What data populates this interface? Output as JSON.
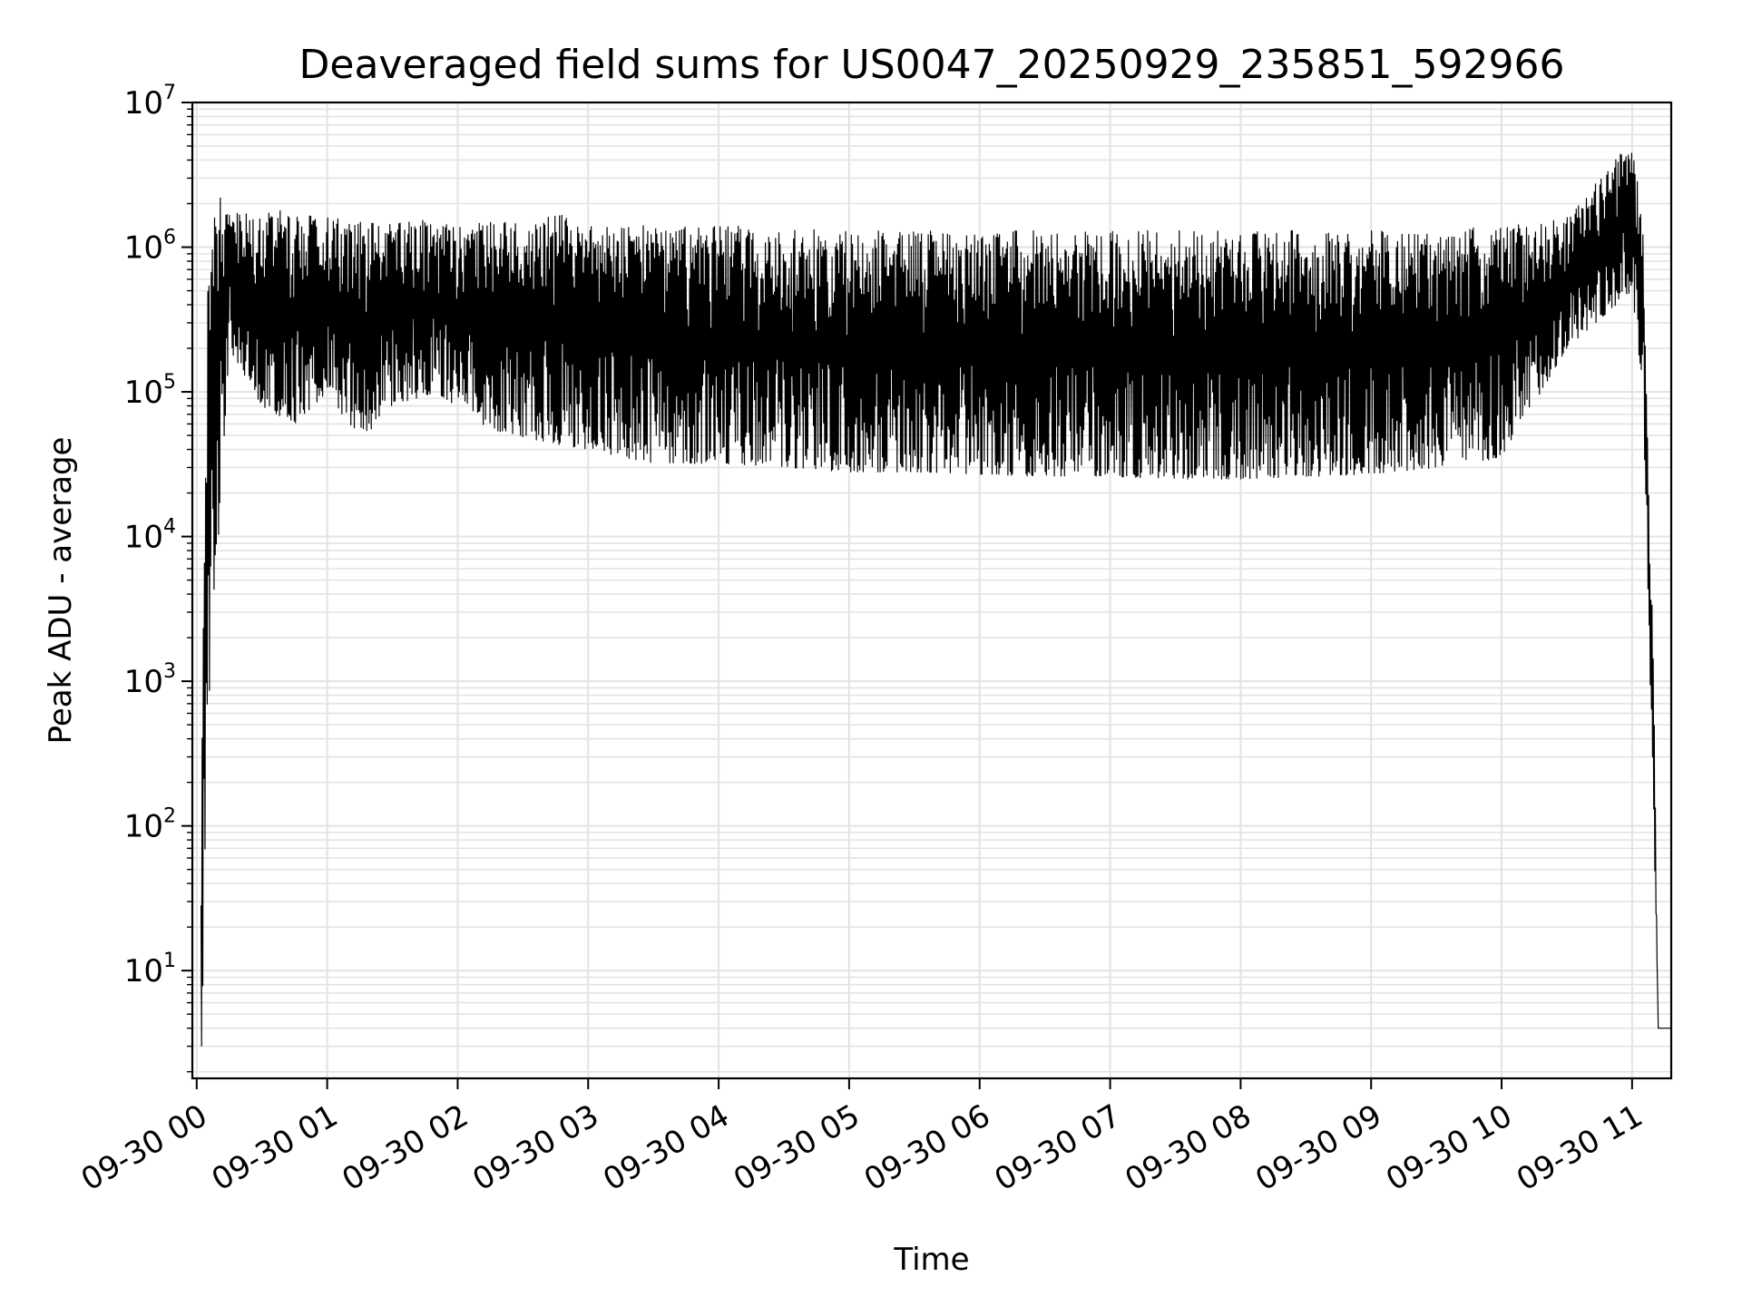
{
  "chart_data": {
    "type": "line",
    "title": "Deaveraged field sums for US0047_20250929_235851_592966",
    "xlabel": "Time",
    "ylabel": "Peak ADU - average",
    "yscale": "log",
    "ylim": [
      1.8,
      10000000
    ],
    "xlim": [
      "2025-09-29 23:58",
      "2025-09-30 11:18"
    ],
    "x_ticks": [
      "09-30 00",
      "09-30 01",
      "09-30 02",
      "09-30 03",
      "09-30 04",
      "09-30 05",
      "09-30 06",
      "09-30 07",
      "09-30 08",
      "09-30 09",
      "09-30 10",
      "09-30 11"
    ],
    "y_ticks": [
      {
        "base": "10",
        "exp": "1",
        "value": 10
      },
      {
        "base": "10",
        "exp": "2",
        "value": 100
      },
      {
        "base": "10",
        "exp": "3",
        "value": 1000
      },
      {
        "base": "10",
        "exp": "4",
        "value": 10000
      },
      {
        "base": "10",
        "exp": "5",
        "value": 100000
      },
      {
        "base": "10",
        "exp": "6",
        "value": 1000000
      },
      {
        "base": "10",
        "exp": "7",
        "value": 10000000
      }
    ],
    "grid": true,
    "line_color": "#000000",
    "grid_color": "#e3e3e3",
    "series": [
      {
        "upper_envelope": [
          [
            "2025-09-30 00:02",
            80
          ],
          [
            "2025-09-30 00:05",
            1500000
          ],
          [
            "2025-09-30 00:10",
            2500000
          ],
          [
            "2025-09-30 00:20",
            1700000
          ],
          [
            "2025-09-30 00:40",
            1800000
          ],
          [
            "2025-09-30 01:00",
            1600000
          ],
          [
            "2025-09-30 01:20",
            1500000
          ],
          [
            "2025-09-30 01:40",
            1600000
          ],
          [
            "2025-09-30 02:00",
            1500000
          ],
          [
            "2025-09-30 02:30",
            1600000
          ],
          [
            "2025-09-30 02:50",
            1700000
          ],
          [
            "2025-09-30 03:00",
            1500000
          ],
          [
            "2025-09-30 03:30",
            1400000
          ],
          [
            "2025-09-30 04:00",
            1400000
          ],
          [
            "2025-09-30 04:30",
            1400000
          ],
          [
            "2025-09-30 05:00",
            1300000
          ],
          [
            "2025-09-30 05:30",
            1300000
          ],
          [
            "2025-09-30 06:00",
            1300000
          ],
          [
            "2025-09-30 06:30",
            1300000
          ],
          [
            "2025-09-30 07:00",
            1300000
          ],
          [
            "2025-09-30 07:30",
            1300000
          ],
          [
            "2025-09-30 08:00",
            1300000
          ],
          [
            "2025-09-30 08:30",
            1300000
          ],
          [
            "2025-09-30 09:00",
            1300000
          ],
          [
            "2025-09-30 09:30",
            1300000
          ],
          [
            "2025-09-30 10:00",
            1400000
          ],
          [
            "2025-09-30 10:30",
            1600000
          ],
          [
            "2025-09-30 11:00",
            5500000
          ],
          [
            "2025-09-30 11:05",
            1500000
          ],
          [
            "2025-09-30 11:10",
            1000
          ],
          [
            "2025-09-30 11:12",
            4
          ],
          [
            "2025-09-30 11:18",
            4
          ]
        ],
        "lower_envelope": [
          [
            "2025-09-30 00:02",
            1.8
          ],
          [
            "2025-09-30 00:05",
            500
          ],
          [
            "2025-09-30 00:15",
            200000
          ],
          [
            "2025-09-30 00:30",
            80000
          ],
          [
            "2025-09-30 00:45",
            60000
          ],
          [
            "2025-09-30 01:00",
            100000
          ],
          [
            "2025-09-30 01:15",
            45000
          ],
          [
            "2025-09-30 01:30",
            80000
          ],
          [
            "2025-09-30 01:50",
            100000
          ],
          [
            "2025-09-30 02:15",
            55000
          ],
          [
            "2025-09-30 02:40",
            45000
          ],
          [
            "2025-09-30 03:00",
            40000
          ],
          [
            "2025-09-30 03:30",
            32000
          ],
          [
            "2025-09-30 04:00",
            32000
          ],
          [
            "2025-09-30 04:30",
            30000
          ],
          [
            "2025-09-30 05:00",
            28000
          ],
          [
            "2025-09-30 05:30",
            28000
          ],
          [
            "2025-09-30 06:00",
            27000
          ],
          [
            "2025-09-30 06:30",
            26000
          ],
          [
            "2025-09-30 07:00",
            26000
          ],
          [
            "2025-09-30 07:30",
            25000
          ],
          [
            "2025-09-30 08:00",
            25000
          ],
          [
            "2025-09-30 08:30",
            26000
          ],
          [
            "2025-09-30 09:00",
            27000
          ],
          [
            "2025-09-30 09:30",
            30000
          ],
          [
            "2025-09-30 10:00",
            35000
          ],
          [
            "2025-09-30 10:30",
            200000
          ],
          [
            "2025-09-30 11:00",
            500000
          ],
          [
            "2025-09-30 11:05",
            100000
          ],
          [
            "2025-09-30 11:10",
            100
          ],
          [
            "2025-09-30 11:12",
            4
          ],
          [
            "2025-09-30 11:18",
            4
          ]
        ]
      }
    ]
  }
}
